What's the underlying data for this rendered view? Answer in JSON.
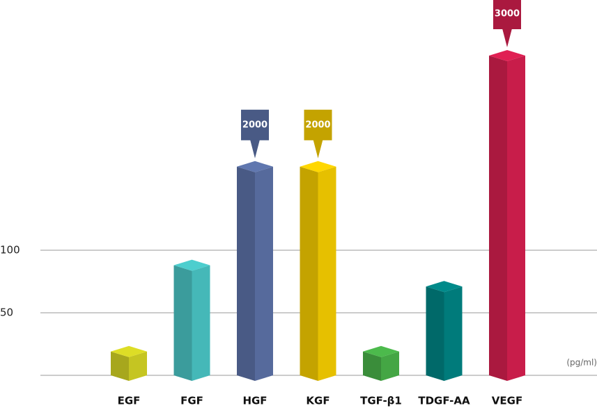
{
  "chart_data": {
    "type": "bar3d",
    "unit": "(pg/ml)",
    "categories": [
      "EGF",
      "FGF",
      "HGF",
      "KGF",
      "TGF-β1",
      "TDGF-AA",
      "VEGF"
    ],
    "values": [
      19,
      88,
      2000,
      2000,
      19,
      71,
      3000
    ],
    "colors": [
      "#c5c522",
      "#45b8b8",
      "#566a9c",
      "#e6c000",
      "#44a644",
      "#007b7b",
      "#c81d4a"
    ],
    "ylim": [
      0,
      3000
    ],
    "yticks": [
      50,
      100
    ],
    "grid": true
  }
}
